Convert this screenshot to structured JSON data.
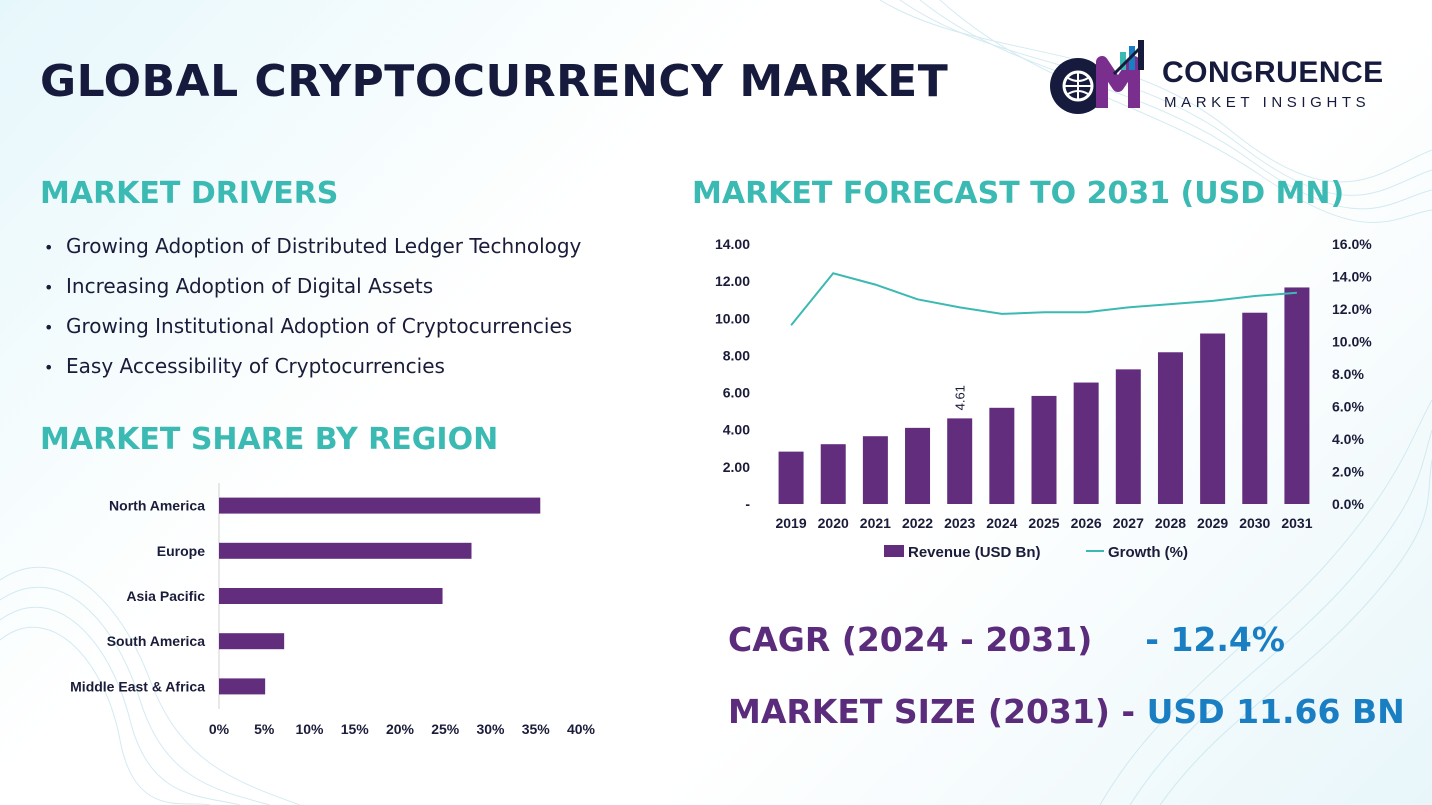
{
  "header": {
    "title": "GLOBAL CRYPTOCURRENCY MARKET",
    "logo_name": "CONGRUENCE",
    "logo_tagline": "MARKET INSIGHTS",
    "logo_mark_letters": "CM"
  },
  "drivers": {
    "title": "MARKET DRIVERS",
    "items": [
      "Growing Adoption of Distributed Ledger Technology",
      "Increasing Adoption of Digital Assets",
      "Growing Institutional Adoption of Cryptocurrencies",
      "Easy Accessibility of Cryptocurrencies"
    ]
  },
  "region": {
    "title": "MARKET SHARE BY REGION"
  },
  "forecast": {
    "title": "MARKET FORECAST TO 2031 (USD MN)"
  },
  "stats": {
    "cagr_label": "CAGR (2024 - 2031)",
    "cagr_value": "- 12.4%",
    "size_label": "MARKET SIZE (2031)",
    "size_sep": "-",
    "size_value": "USD 11.66 BN"
  },
  "colors": {
    "bar": "#632d7d",
    "line": "#3bb9b3",
    "heading": "#3bb9b3",
    "stat_label": "#5b2b7c",
    "stat_value": "#1a7ec2"
  },
  "chart_data": [
    {
      "type": "bar",
      "orientation": "horizontal",
      "categories": [
        "North America",
        "Europe",
        "Asia Pacific",
        "South America",
        "Middle East & Africa"
      ],
      "values": [
        35.5,
        27.9,
        24.7,
        7.2,
        5.1
      ],
      "xlim": [
        0,
        40
      ],
      "xticks": [
        "0%",
        "5%",
        "10%",
        "15%",
        "20%",
        "25%",
        "30%",
        "35%",
        "40%"
      ],
      "grid": false
    },
    {
      "type": "bar+line",
      "categories": [
        "2019",
        "2020",
        "2021",
        "2022",
        "2023",
        "2024",
        "2025",
        "2026",
        "2027",
        "2028",
        "2029",
        "2030",
        "2031"
      ],
      "series": [
        {
          "name": "Revenue (USD Bn)",
          "type": "bar",
          "axis": "left",
          "values": [
            2.82,
            3.22,
            3.65,
            4.1,
            4.61,
            5.18,
            5.82,
            6.54,
            7.25,
            8.17,
            9.18,
            10.3,
            11.66
          ]
        },
        {
          "name": "Growth (%)",
          "type": "line",
          "axis": "right",
          "values": [
            11.0,
            14.2,
            13.5,
            12.6,
            12.1,
            11.7,
            11.8,
            11.8,
            12.1,
            12.3,
            12.5,
            12.8,
            13.0
          ]
        }
      ],
      "data_labels": [
        {
          "category": "2023",
          "text": "4.61"
        }
      ],
      "ylim_left": [
        0,
        14
      ],
      "ylim_right": [
        0,
        16
      ],
      "yticks_left": [
        "-",
        "2.00",
        "4.00",
        "6.00",
        "8.00",
        "10.00",
        "12.00",
        "14.00"
      ],
      "yticks_right": [
        "0.0%",
        "2.0%",
        "4.0%",
        "6.0%",
        "8.0%",
        "10.0%",
        "12.0%",
        "14.0%",
        "16.0%"
      ],
      "legend": "bottom",
      "grid": false
    }
  ]
}
